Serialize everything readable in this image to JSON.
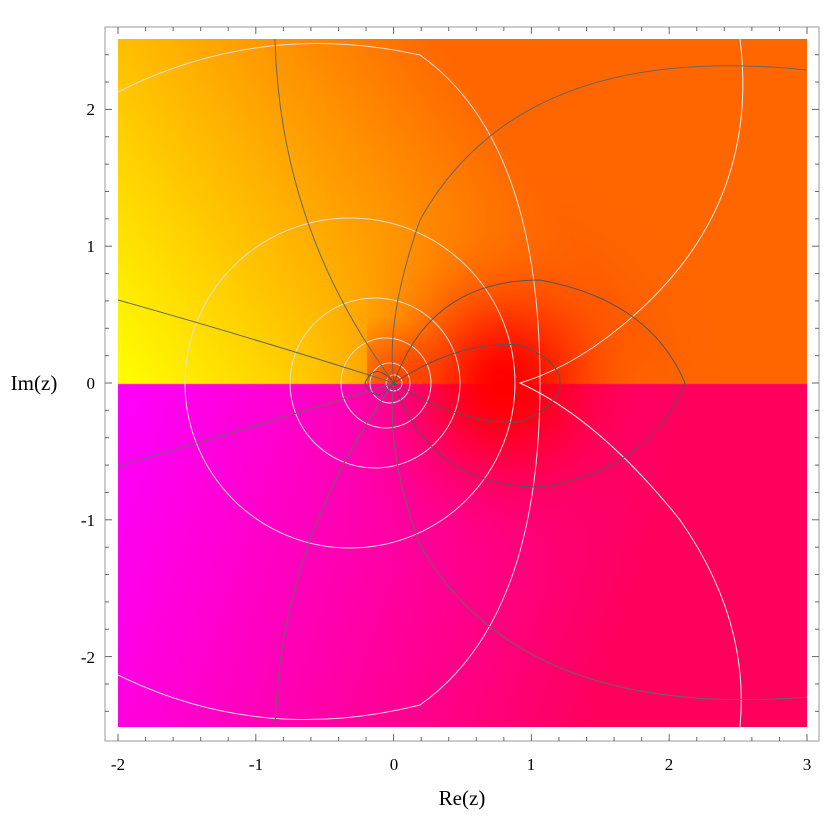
{
  "chart_data": {
    "type": "heatmap",
    "style": "complex domain coloring (hue = phase) with contour lines",
    "xlabel": "Re(z)",
    "ylabel": "Im(z)",
    "xlim": [
      -2,
      3
    ],
    "ylim": [
      -2.5,
      2.5
    ],
    "x_ticks": [
      "-2",
      "-1",
      "0",
      "1",
      "2",
      "3"
    ],
    "y_ticks": [
      "-2",
      "-1",
      "0",
      "1",
      "2"
    ],
    "grid": false,
    "colors": {
      "upper_left": "#ffff00",
      "upper_right": "#ff7000",
      "center_red": "#ff0000",
      "lower_left": "#ff00ff",
      "lower_right": "#ff0060",
      "contour_dark": "#555555",
      "contour_light": "#dddddd"
    },
    "features": {
      "singular_point": [
        0,
        0
      ],
      "branch_cut": "real axis (Im=0)",
      "red_zone_center": [
        0.8,
        0
      ]
    }
  }
}
